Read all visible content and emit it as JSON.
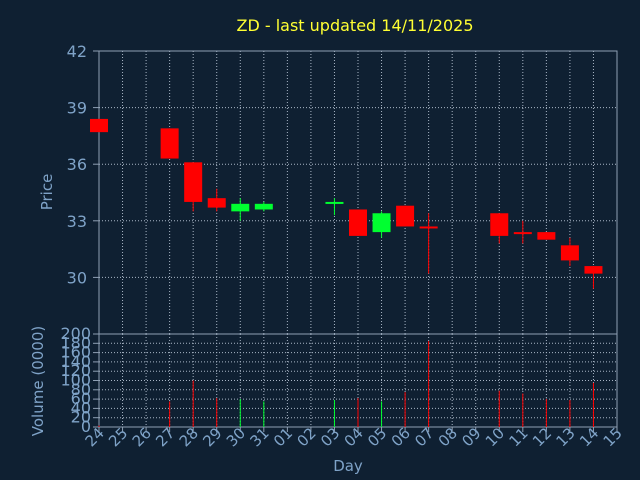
{
  "title": "ZD - last updated 14/11/2025",
  "colors": {
    "background": "#0f2032",
    "plot_background": "#0f2032",
    "border": "#8fa0b4",
    "grid": "#a9b6c6",
    "up": "#00ff30",
    "down": "#ff0000",
    "text": "#7fa3c8",
    "title": "#ffff33"
  },
  "chart_data": [
    {
      "type": "candlestick",
      "ylabel": "Price",
      "ylim": [
        27,
        42
      ],
      "yticks": [
        30,
        33,
        36,
        39,
        42
      ],
      "grid": true,
      "x": [
        "24",
        "25",
        "26",
        "27",
        "28",
        "29",
        "30",
        "31",
        "01",
        "02",
        "03",
        "04",
        "05",
        "06",
        "07",
        "08",
        "09",
        "10",
        "11",
        "12",
        "13",
        "14",
        "15"
      ],
      "candles": [
        {
          "x": "24",
          "open": 38.4,
          "close": 37.7,
          "high": 38.4,
          "low": 37.7
        },
        {
          "x": "27",
          "open": 37.9,
          "close": 36.3,
          "high": 37.9,
          "low": 36.3
        },
        {
          "x": "28",
          "open": 36.1,
          "close": 34.0,
          "high": 36.1,
          "low": 33.5
        },
        {
          "x": "29",
          "open": 34.2,
          "close": 33.7,
          "high": 34.7,
          "low": 33.5
        },
        {
          "x": "30",
          "open": 33.5,
          "close": 33.9,
          "high": 34.2,
          "low": 33.0
        },
        {
          "x": "31",
          "open": 33.6,
          "close": 33.9,
          "high": 34.0,
          "low": 33.5
        },
        {
          "x": "03",
          "open": 33.9,
          "close": 34.0,
          "high": 34.2,
          "low": 33.3
        },
        {
          "x": "04",
          "open": 33.6,
          "close": 32.2,
          "high": 33.6,
          "low": 32.2
        },
        {
          "x": "05",
          "open": 32.4,
          "close": 33.4,
          "high": 33.5,
          "low": 32.1
        },
        {
          "x": "06",
          "open": 33.8,
          "close": 32.7,
          "high": 33.8,
          "low": 32.7
        },
        {
          "x": "07",
          "open": 32.7,
          "close": 32.6,
          "high": 33.4,
          "low": 30.2
        },
        {
          "x": "10",
          "open": 33.4,
          "close": 32.2,
          "high": 33.4,
          "low": 31.8
        },
        {
          "x": "11",
          "open": 32.4,
          "close": 32.3,
          "high": 33.0,
          "low": 31.8
        },
        {
          "x": "12",
          "open": 32.4,
          "close": 32.0,
          "high": 32.4,
          "low": 32.0
        },
        {
          "x": "13",
          "open": 31.7,
          "close": 30.9,
          "high": 32.1,
          "low": 30.6
        },
        {
          "x": "14",
          "open": 30.6,
          "close": 30.2,
          "high": 30.6,
          "low": 29.4
        }
      ]
    },
    {
      "type": "bar",
      "xlabel": "Day",
      "ylabel": "Volume (0000)",
      "ylim": [
        0,
        200
      ],
      "yticks": [
        0,
        20,
        40,
        60,
        80,
        100,
        120,
        140,
        160,
        180,
        200
      ],
      "grid": true,
      "categories": [
        "24",
        "25",
        "26",
        "27",
        "28",
        "29",
        "30",
        "31",
        "01",
        "02",
        "03",
        "04",
        "05",
        "06",
        "07",
        "08",
        "09",
        "10",
        "11",
        "12",
        "13",
        "14",
        "15"
      ],
      "bars": [
        {
          "x": "24",
          "value": 3,
          "direction": "down"
        },
        {
          "x": "27",
          "value": 55,
          "direction": "down"
        },
        {
          "x": "28",
          "value": 100,
          "direction": "down"
        },
        {
          "x": "29",
          "value": 62,
          "direction": "down"
        },
        {
          "x": "30",
          "value": 60,
          "direction": "up"
        },
        {
          "x": "31",
          "value": 55,
          "direction": "up"
        },
        {
          "x": "03",
          "value": 58,
          "direction": "up"
        },
        {
          "x": "04",
          "value": 62,
          "direction": "down"
        },
        {
          "x": "05",
          "value": 55,
          "direction": "up"
        },
        {
          "x": "06",
          "value": 75,
          "direction": "down"
        },
        {
          "x": "07",
          "value": 185,
          "direction": "down"
        },
        {
          "x": "10",
          "value": 78,
          "direction": "down"
        },
        {
          "x": "11",
          "value": 72,
          "direction": "down"
        },
        {
          "x": "12",
          "value": 60,
          "direction": "down"
        },
        {
          "x": "13",
          "value": 58,
          "direction": "down"
        },
        {
          "x": "14",
          "value": 95,
          "direction": "down"
        }
      ]
    }
  ]
}
